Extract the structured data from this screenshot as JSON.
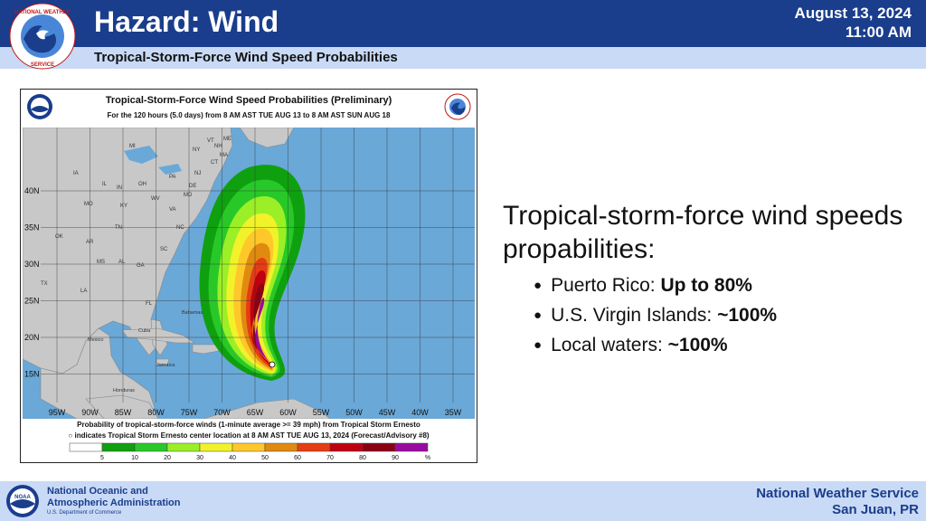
{
  "header": {
    "title": "Hazard: Wind",
    "subtitle": "Tropical-Storm-Force Wind Speed Probabilities",
    "date": "August 13, 2024",
    "time": "11:00 AM",
    "logo_icon": "nws-logo-icon",
    "logo_text": "NATIONAL WEATHER SERVICE"
  },
  "map": {
    "title": "Tropical-Storm-Force Wind Speed Probabilities (Preliminary)",
    "subtitle": "For the 120 hours (5.0 days) from 8 AM AST TUE AUG 13 to 8 AM AST SUN AUG 18",
    "lat_labels": [
      "40N",
      "35N",
      "30N",
      "25N",
      "20N",
      "15N"
    ],
    "lon_labels": [
      "95W",
      "90W",
      "85W",
      "80W",
      "75W",
      "70W",
      "65W",
      "60W",
      "55W",
      "50W",
      "45W",
      "40W",
      "35W"
    ],
    "state_labels": [
      "ME",
      "MI",
      "NY",
      "VT",
      "NH",
      "MA",
      "CT",
      "IA",
      "IL",
      "IN",
      "OH",
      "PA",
      "NJ",
      "DE",
      "MO",
      "KY",
      "WV",
      "VA",
      "MD",
      "OK",
      "AR",
      "TN",
      "NC",
      "SC",
      "MS",
      "AL",
      "GA",
      "TX",
      "LA",
      "FL"
    ],
    "place_labels": [
      "Mexico",
      "Cuba",
      "Jamaica",
      "Bahamas",
      "Honduras"
    ],
    "caption_line1": "Probability of tropical-storm-force winds (1-minute average >= 39 mph) from Tropical Storm Ernesto",
    "caption_line2": "indicates Tropical Storm Ernesto center location at 8 AM AST TUE AUG 13, 2024 (Forecast/Advisory #8)",
    "legend": {
      "labels": [
        "5",
        "10",
        "20",
        "30",
        "40",
        "50",
        "60",
        "70",
        "80",
        "90",
        "%"
      ],
      "colors": [
        "#ffffff",
        "#0fa00f",
        "#28c828",
        "#9aef26",
        "#f2f22a",
        "#ffc82a",
        "#e08a10",
        "#e63c14",
        "#c00010",
        "#8c0014",
        "#9b0aa0"
      ]
    }
  },
  "main": {
    "heading": "Tropical-storm-force wind speeds propabilities:",
    "bullets": [
      {
        "label": "Puerto Rico: ",
        "value": "Up to 80%"
      },
      {
        "label": "U.S. Virgin Islands: ",
        "value": "~100%"
      },
      {
        "label": "Local waters: ",
        "value": "~100%"
      }
    ]
  },
  "footer": {
    "noaa_line1": "National Oceanic and",
    "noaa_line2": "Atmospheric Administration",
    "noaa_dept": "U.S. Department of Commerce",
    "nws_line1": "National Weather Service",
    "nws_line2": "San Juan, PR",
    "noaa_icon": "noaa-logo-icon"
  },
  "colors": {
    "header_bg": "#1a3d8c",
    "subheader_bg": "#c9daf6",
    "ocean": "#6aa8d8",
    "land": "#c8c8c8"
  }
}
